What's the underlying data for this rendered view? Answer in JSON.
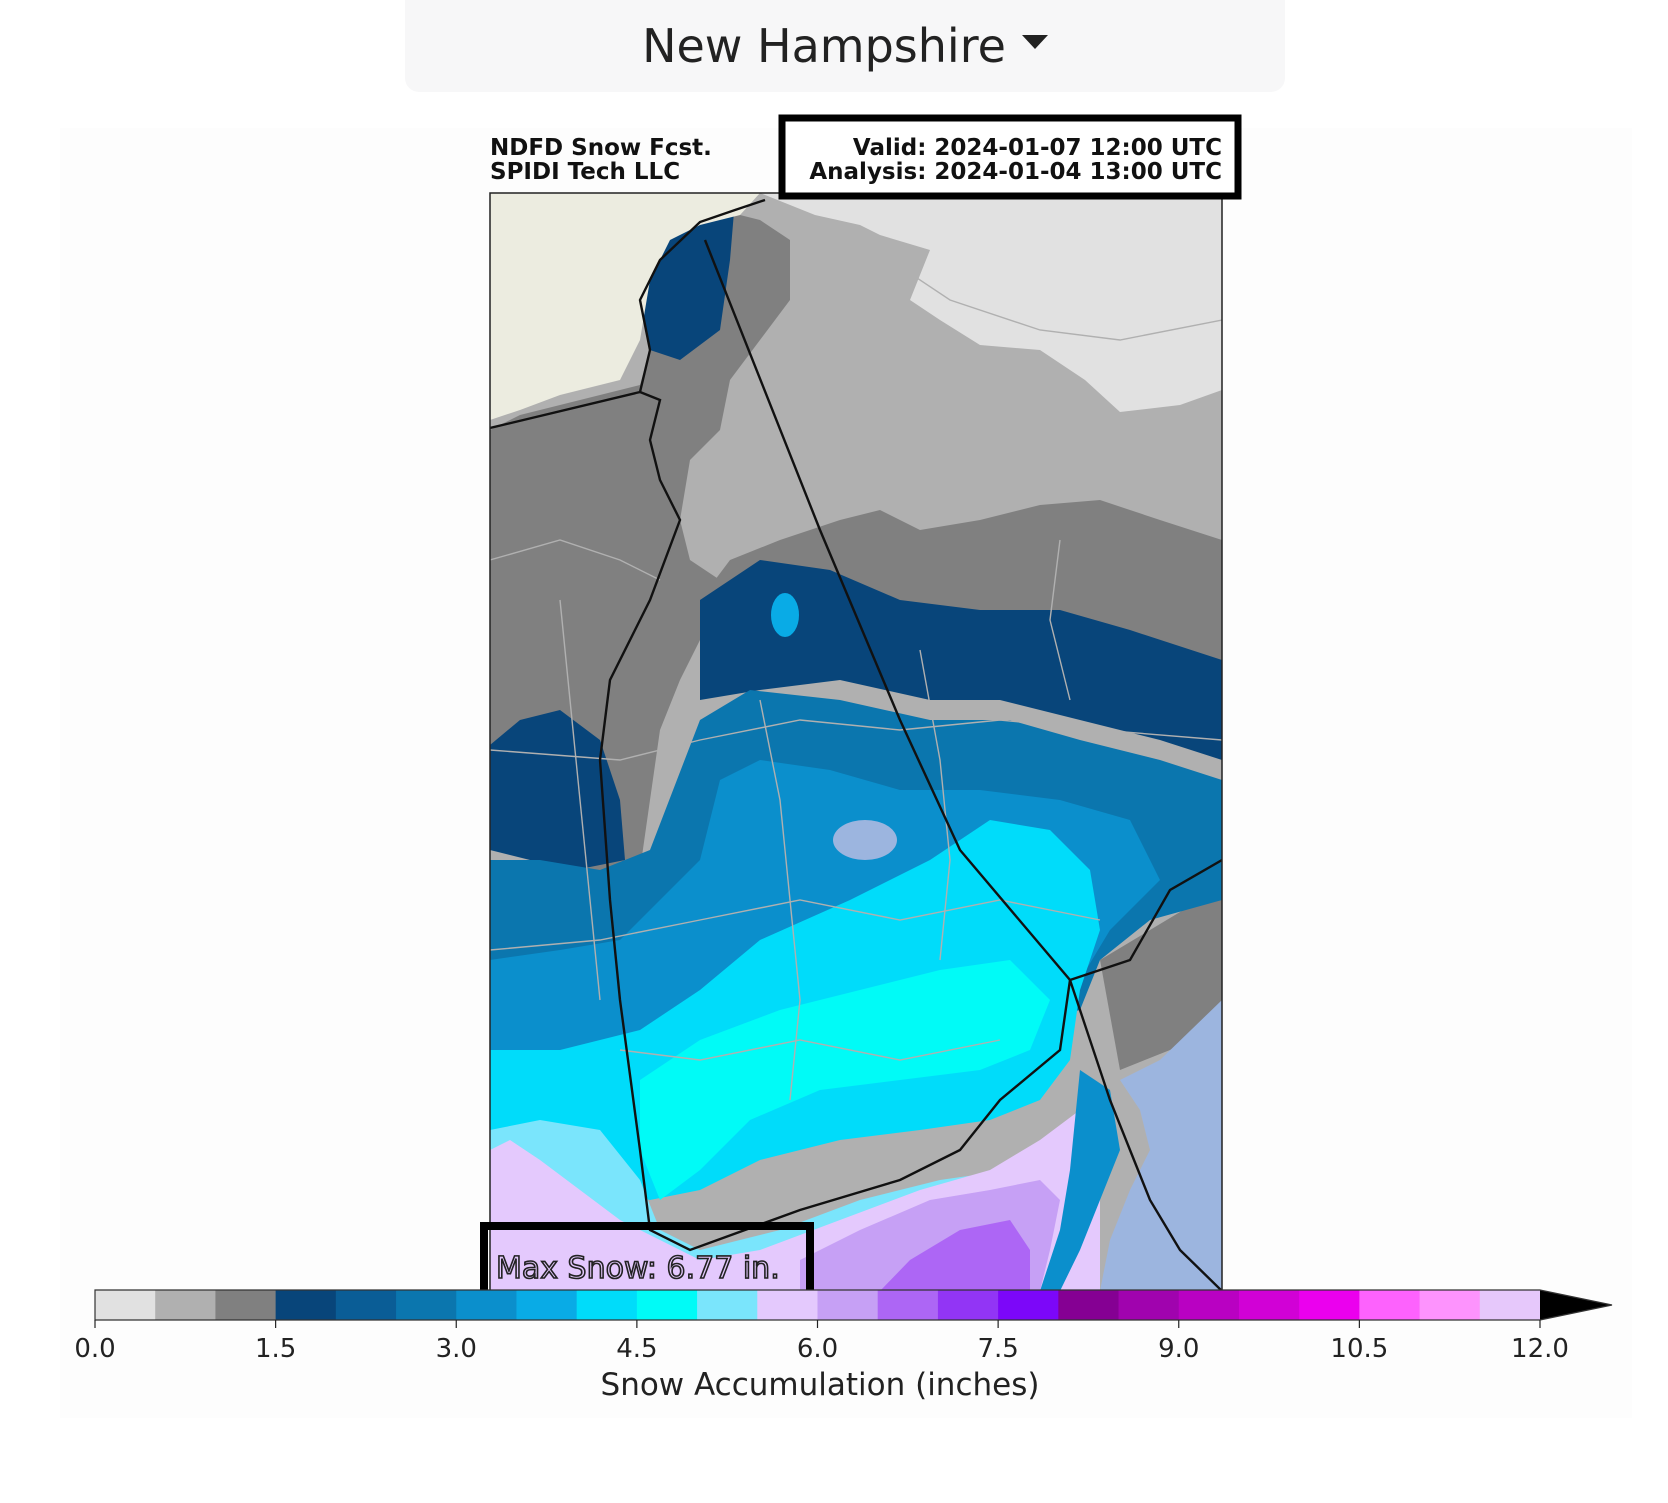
{
  "region_selector": {
    "selected": "New Hampshire"
  },
  "map": {
    "title_left_line1": "NDFD Snow Fcst.",
    "title_left_line2": "SPIDI Tech LLC",
    "valid_label": "Valid: 2024-01-07 12:00 UTC",
    "analysis_label": "Analysis: 2024-01-04 13:00 UTC",
    "max_snow_label": "Max Snow: 6.77 in.",
    "colors": {
      "water": "#9cb5df",
      "land_outside": "#ecece0",
      "boundary": "#111111",
      "county_lines": "#b0b0b0"
    }
  },
  "colorbar": {
    "label": "Snow Accumulation (inches)",
    "ticks": [
      "0.0",
      "1.5",
      "3.0",
      "4.5",
      "6.0",
      "7.5",
      "9.0",
      "10.5",
      "12.0"
    ],
    "min": 0,
    "max": 12,
    "step": 0.5,
    "extend": "max",
    "colors": [
      "#e1e1e1",
      "#b0b0b0",
      "#808080",
      "#08457a",
      "#0a5d96",
      "#0b76ae",
      "#0b8fcc",
      "#09abe6",
      "#00dcfa",
      "#00fbf7",
      "#7ae5fc",
      "#e4c9fd",
      "#c6a0f5",
      "#ad66f5",
      "#9235f5",
      "#7c07f9",
      "#850093",
      "#a003ae",
      "#b901c2",
      "#d101d6",
      "#eb00ee",
      "#fd62fd",
      "#fd93fd",
      "#e6c8fb"
    ]
  }
}
